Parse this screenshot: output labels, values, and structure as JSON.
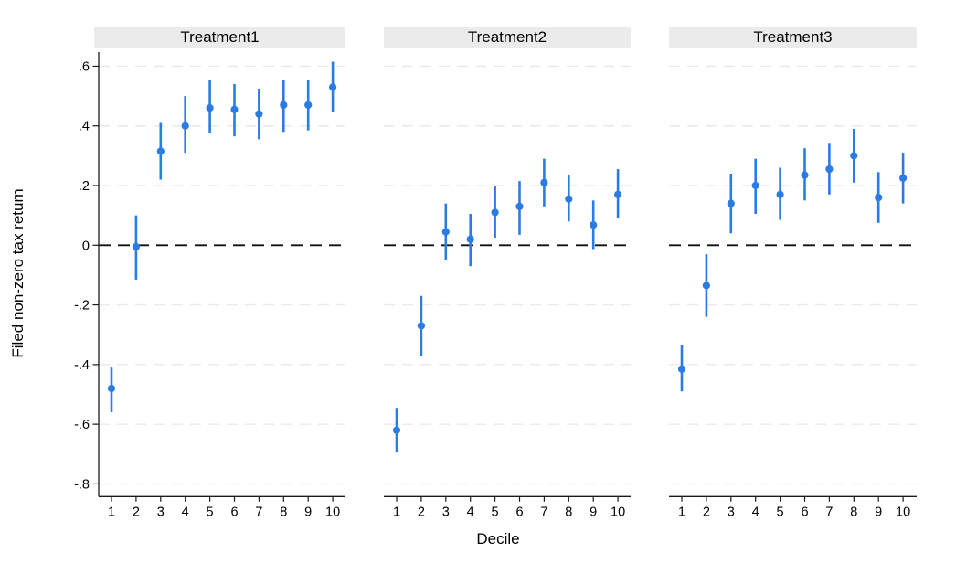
{
  "figure": {
    "background": "#ffffff"
  },
  "chart_data": {
    "type": "scatter",
    "subtype": "coefficient-plot-with-ci",
    "title": "",
    "xlabel": "Decile",
    "ylabel": "Filed non-zero tax return",
    "x": [
      1,
      2,
      3,
      4,
      5,
      6,
      7,
      8,
      9,
      10
    ],
    "xtick_labels": [
      "1",
      "2",
      "3",
      "4",
      "5",
      "6",
      "7",
      "8",
      "9",
      "10"
    ],
    "ylim": [
      -0.87,
      0.66
    ],
    "yticks": [
      0.6,
      0.4,
      0.2,
      0,
      -0.2,
      -0.4,
      -0.6,
      -0.8
    ],
    "ytick_labels": [
      ".6",
      ".4",
      ".2",
      "0",
      "-.2",
      "-.4",
      "-.6",
      "-.8"
    ],
    "grid": "horizontal-dashed",
    "zero_reference_line": true,
    "legend": null,
    "panels": [
      {
        "label": "Treatment1",
        "estimates": [
          -0.48,
          -0.005,
          0.315,
          0.4,
          0.46,
          0.455,
          0.44,
          0.47,
          0.47,
          0.53
        ],
        "ci_low": [
          -0.56,
          -0.115,
          0.22,
          0.31,
          0.375,
          0.365,
          0.355,
          0.38,
          0.385,
          0.445
        ],
        "ci_high": [
          -0.41,
          0.1,
          0.41,
          0.5,
          0.555,
          0.54,
          0.525,
          0.555,
          0.555,
          0.615
        ]
      },
      {
        "label": "Treatment2",
        "estimates": [
          -0.62,
          -0.27,
          0.045,
          0.02,
          0.11,
          0.13,
          0.21,
          0.155,
          0.068,
          0.17
        ],
        "ci_low": [
          -0.695,
          -0.37,
          -0.05,
          -0.07,
          0.025,
          0.035,
          0.13,
          0.08,
          -0.013,
          0.09
        ],
        "ci_high": [
          -0.545,
          -0.17,
          0.14,
          0.105,
          0.2,
          0.215,
          0.29,
          0.237,
          0.15,
          0.255
        ]
      },
      {
        "label": "Treatment3",
        "estimates": [
          -0.415,
          -0.135,
          0.14,
          0.2,
          0.17,
          0.235,
          0.255,
          0.3,
          0.16,
          0.225
        ],
        "ci_low": [
          -0.49,
          -0.24,
          0.04,
          0.105,
          0.085,
          0.15,
          0.17,
          0.21,
          0.075,
          0.14
        ],
        "ci_high": [
          -0.335,
          -0.03,
          0.24,
          0.29,
          0.26,
          0.325,
          0.34,
          0.39,
          0.245,
          0.31
        ]
      }
    ],
    "colors": {
      "point": "#2a7ce4",
      "ci_line": "#2a7ce4",
      "zero_line": "#111111",
      "grid_line": "#e9e9e9",
      "axis_line": "#1a1a1a",
      "header_bg": "#ebebeb",
      "text": "#000000"
    }
  }
}
